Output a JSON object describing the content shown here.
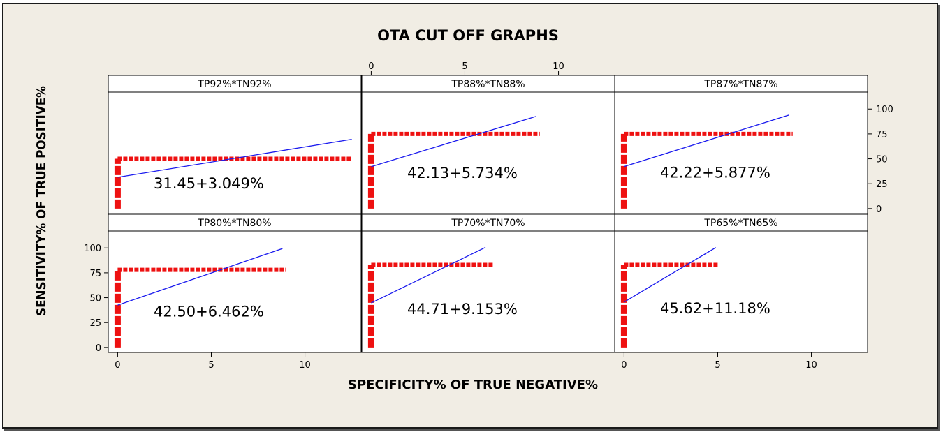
{
  "chart_data": {
    "type": "scatter",
    "title": "OTA CUT OFF GRAPHS",
    "xlabel": "SPECIFICITY% OF TRUE NEGATIVE%",
    "ylabel": "SENSITIVITY% OF TRUE POSITIVE%",
    "xlim": [
      -0.5,
      13
    ],
    "ylim": [
      -5,
      117
    ],
    "x_ticks": [
      0,
      5,
      10
    ],
    "y_ticks": [
      0,
      25,
      50,
      75,
      100
    ],
    "grid": false,
    "colors": {
      "data": "#ee1111",
      "fit": "#1a1aee",
      "frame_bg": "#f1ede4",
      "panel_bg": "#ffffff"
    },
    "panels": [
      {
        "name": "TP92%*TN92%",
        "equation": "31.45+3.049%",
        "intercept": 31.45,
        "slope": 3.049,
        "fit_x_max": 12.5,
        "cutoff": 50,
        "x_max": 12.5
      },
      {
        "name": "TP88%*TN88%",
        "equation": "42.13+5.734%",
        "intercept": 42.13,
        "slope": 5.734,
        "fit_x_max": 8.8,
        "cutoff": 75,
        "x_max": 9.0
      },
      {
        "name": "TP87%*TN87%",
        "equation": "42.22+5.877%",
        "intercept": 42.22,
        "slope": 5.877,
        "fit_x_max": 8.8,
        "cutoff": 75,
        "x_max": 9.0
      },
      {
        "name": "TP80%*TN80%",
        "equation": "42.50+6.462%",
        "intercept": 42.5,
        "slope": 6.462,
        "fit_x_max": 8.8,
        "cutoff": 78,
        "x_max": 9.0
      },
      {
        "name": "TP70%*TN70%",
        "equation": "44.71+9.153%",
        "intercept": 44.71,
        "slope": 9.153,
        "fit_x_max": 6.1,
        "cutoff": 83,
        "x_max": 6.5
      },
      {
        "name": "TP65%*TN65%",
        "equation": "45.62+11.18%",
        "intercept": 45.62,
        "slope": 11.18,
        "fit_x_max": 4.9,
        "cutoff": 83,
        "x_max": 5.0
      }
    ]
  }
}
